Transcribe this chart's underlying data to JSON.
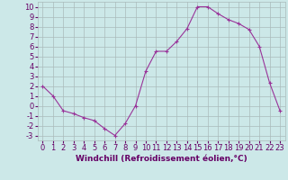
{
  "x": [
    0,
    1,
    2,
    3,
    4,
    5,
    6,
    7,
    8,
    9,
    10,
    11,
    12,
    13,
    14,
    15,
    16,
    17,
    18,
    19,
    20,
    21,
    22,
    23
  ],
  "y": [
    2,
    1,
    -0.5,
    -0.8,
    -1.2,
    -1.5,
    -2.3,
    -3,
    -1.8,
    0,
    3.5,
    5.5,
    5.5,
    6.5,
    7.8,
    10,
    10,
    9.3,
    8.7,
    8.3,
    7.7,
    6,
    2.3,
    -0.5
  ],
  "line_color": "#993399",
  "marker": "+",
  "marker_size": 3,
  "xlim": [
    -0.5,
    23.5
  ],
  "ylim": [
    -3.5,
    10.5
  ],
  "yticks": [
    10,
    9,
    8,
    7,
    6,
    5,
    4,
    3,
    2,
    1,
    0,
    -1,
    -2,
    -3
  ],
  "xticks": [
    0,
    1,
    2,
    3,
    4,
    5,
    6,
    7,
    8,
    9,
    10,
    11,
    12,
    13,
    14,
    15,
    16,
    17,
    18,
    19,
    20,
    21,
    22,
    23
  ],
  "bg_color": "#cce8e8",
  "grid_color": "#aabbbb",
  "tick_label_color": "#660066",
  "xlabel": "Windchill (Refroidissement éolien,°C)",
  "xlabel_color": "#660066",
  "xlabel_fontsize": 6.5,
  "tick_fontsize": 6.0
}
